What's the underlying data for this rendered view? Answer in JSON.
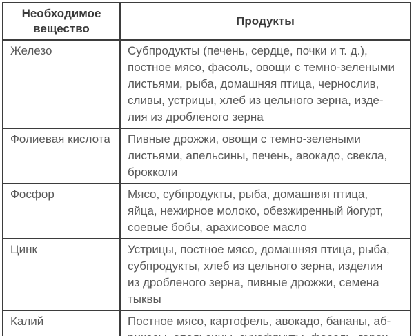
{
  "page": {
    "background_color": "#ffffff",
    "border_color": "#3d3d3d",
    "header_text_color": "#3a3a3a",
    "body_text_color": "#595959"
  },
  "table": {
    "headers": [
      "Необходимое вещество",
      "Продукты"
    ],
    "rows": [
      {
        "substance": "Железо",
        "products_lines": [
          "Субпродукты (печень, сердце, почки и т. д.),",
          "постное мясо, фасоль, овощи с темно-зелеными",
          "листьями, рыба, домашняя птица, чернослив,",
          "сливы, устрицы, хлеб из цельного зерна, изде-",
          "лия из дробленого зерна"
        ]
      },
      {
        "substance": "Фолиевая кислота",
        "products_lines": [
          "Пивные дрожжи, овощи с темно-зелеными",
          "листьями, апельсины, печень, авокадо, свекла,",
          "брокколи"
        ]
      },
      {
        "substance": "Фосфор",
        "products_lines": [
          "Мясо, субпродукты, рыба, домашняя птица,",
          "яйца, нежирное молоко, обезжиренный йогурт,",
          "соевые бобы, арахисовое масло"
        ]
      },
      {
        "substance": "Цинк",
        "products_lines": [
          "Устрицы, постное мясо, домашняя птица, рыба,",
          "субпродукты, хлеб из цельного зерна, изделия",
          "из дробленого зерна, пивные дрожжи, семена",
          "тыквы"
        ]
      },
      {
        "substance": "Калий",
        "products_lines": [
          "Постное мясо, картофель, авокадо, бананы, аб-",
          "рикосы, апельсины, сухофрукты, фасоль, горох"
        ]
      }
    ]
  }
}
